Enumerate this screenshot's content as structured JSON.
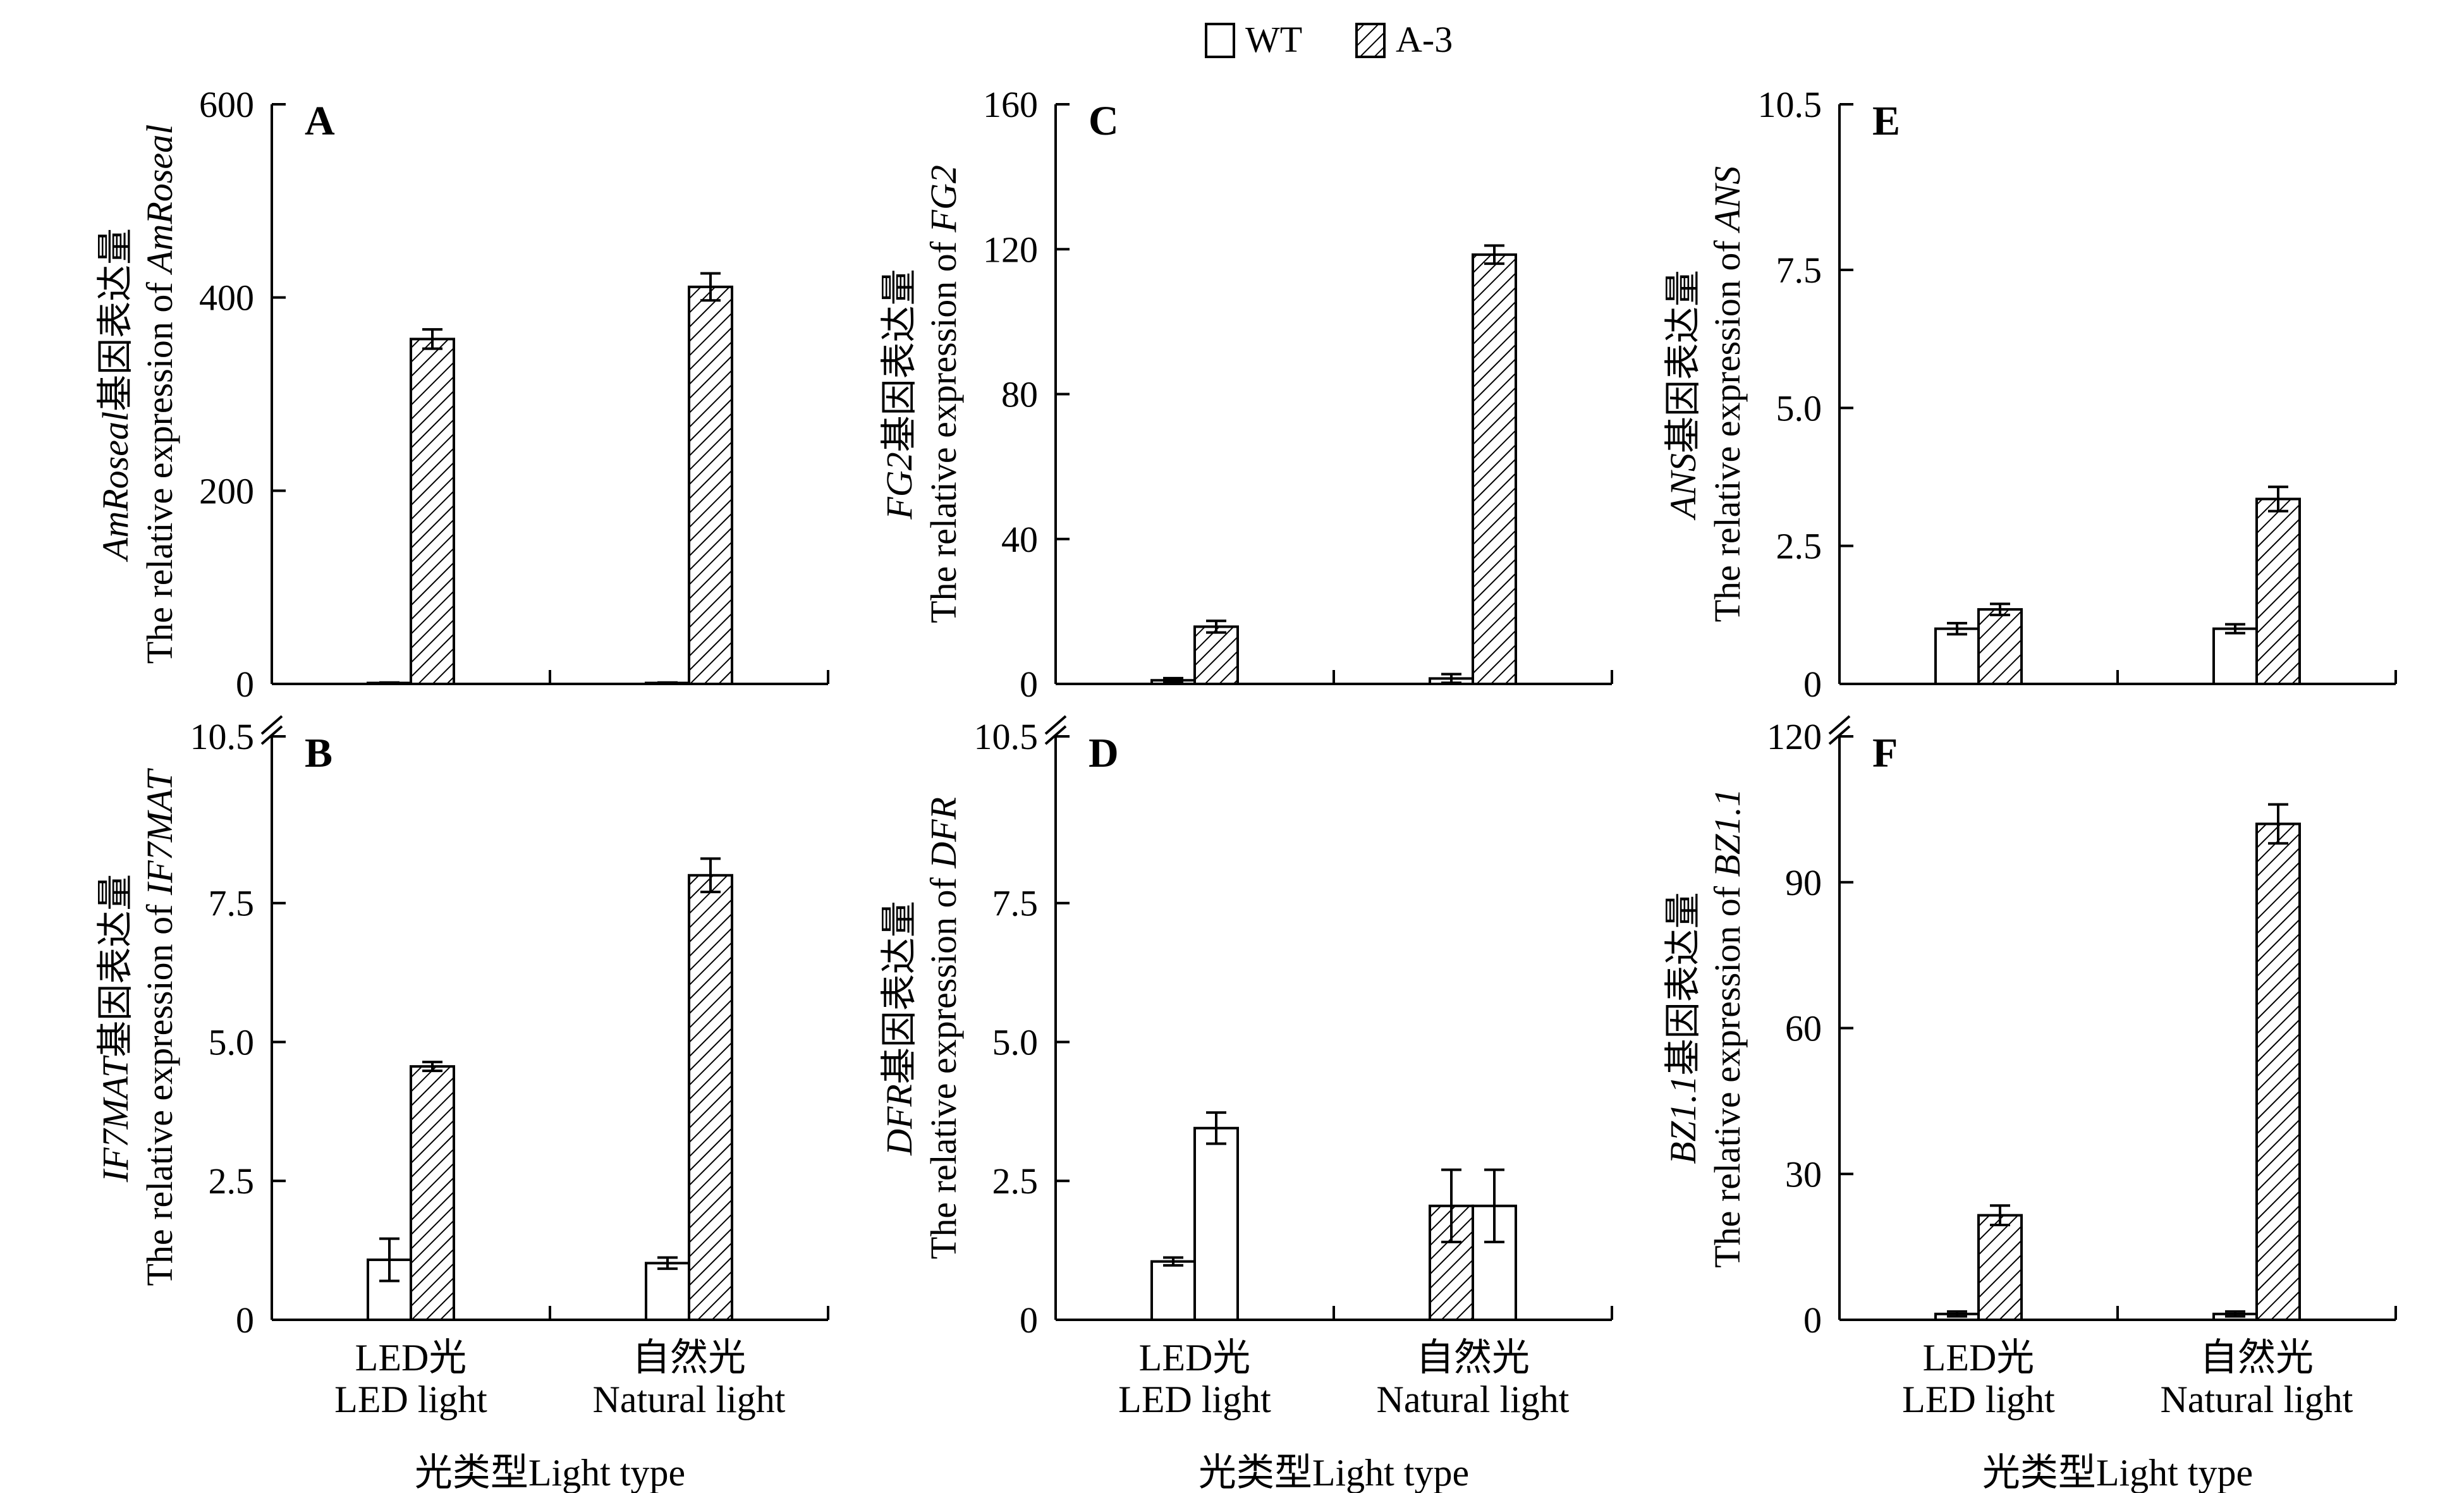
{
  "legend": {
    "items": [
      {
        "name": "WT",
        "pattern": "plain"
      },
      {
        "name": "A-3",
        "pattern": "hatched"
      }
    ]
  },
  "colors": {
    "axis": "#000000",
    "bar_fill": "#ffffff",
    "hatch": "#000000"
  },
  "chart_data": [
    {
      "type": "bar",
      "panel": "A",
      "ylabel_cn": "基因表达量",
      "ylabel_gene": "AmRoseal",
      "ylabel_en": "The relative expression of ",
      "ylabel_en_gene": "AmRoseal",
      "ylim": [
        0,
        600
      ],
      "yticks": [
        "0",
        "200",
        "400",
        "600"
      ],
      "ytick_values": [
        0,
        200,
        400,
        600
      ],
      "categories": [
        {
          "cn": "LED光",
          "en": "LED light"
        },
        {
          "cn": "自然光",
          "en": "Natural light"
        }
      ],
      "series": [
        {
          "name": "WT",
          "values": [
            1,
            1
          ],
          "errors": [
            0.5,
            0.5
          ]
        },
        {
          "name": "A-3",
          "values": [
            357,
            411
          ],
          "errors": [
            10,
            14
          ]
        }
      ],
      "show_xticklabels": false,
      "break_marks": false
    },
    {
      "type": "bar",
      "panel": "B",
      "ylabel_cn": "基因表达量",
      "ylabel_gene": "IF7MAT",
      "ylabel_en": "The relative expression of ",
      "ylabel_en_gene": "IF7MAT",
      "ylim": [
        0,
        10.5
      ],
      "yticks": [
        "0",
        "2.5",
        "5.0",
        "7.5",
        "10.5"
      ],
      "ytick_values": [
        0,
        2.5,
        5.0,
        7.5,
        10.5
      ],
      "categories": [
        {
          "cn": "LED光",
          "en": "LED light"
        },
        {
          "cn": "自然光",
          "en": "Natural light"
        }
      ],
      "series": [
        {
          "name": "WT",
          "values": [
            1.08,
            1.02
          ],
          "errors": [
            0.38,
            0.1
          ]
        },
        {
          "name": "A-3",
          "values": [
            4.56,
            8.0
          ],
          "errors": [
            0.08,
            0.3
          ]
        }
      ],
      "show_xticklabels": true,
      "break_marks": true,
      "xlabel": "光类型Light type"
    },
    {
      "type": "bar",
      "panel": "C",
      "ylabel_cn": "基因表达量",
      "ylabel_gene": "FG2",
      "ylabel_en": "The relative expression of ",
      "ylabel_en_gene": "FG2",
      "ylim": [
        0,
        160
      ],
      "yticks": [
        "0",
        "40",
        "80",
        "120",
        "160"
      ],
      "ytick_values": [
        0,
        40,
        80,
        120,
        160
      ],
      "categories": [
        {
          "cn": "LED光",
          "en": "LED light"
        },
        {
          "cn": "自然光",
          "en": "Natural light"
        }
      ],
      "series": [
        {
          "name": "WT",
          "values": [
            1,
            1.5
          ],
          "errors": [
            0.6,
            1.2
          ]
        },
        {
          "name": "A-3",
          "values": [
            15.8,
            118.5
          ],
          "errors": [
            1.6,
            2.5
          ]
        }
      ],
      "show_xticklabels": false,
      "break_marks": false
    },
    {
      "type": "bar",
      "panel": "D",
      "ylabel_cn": "基因表达量",
      "ylabel_gene": "DFR",
      "ylabel_en": "The relative expression of ",
      "ylabel_en_gene": "DFR",
      "ylim": [
        0,
        10.5
      ],
      "yticks": [
        "0",
        "2.5",
        "5.0",
        "7.5",
        "10.5"
      ],
      "ytick_values": [
        0,
        2.5,
        5.0,
        7.5,
        10.5
      ],
      "categories": [
        {
          "cn": "LED光",
          "en": "LED light"
        },
        {
          "cn": "自然光",
          "en": "Natural light"
        }
      ],
      "series": [
        {
          "name": "WT",
          "values": [
            1.05,
            2.05
          ],
          "errors": [
            0.07,
            0.65
          ]
        },
        {
          "name": "A-3",
          "values": [
            3.45,
            2.05
          ],
          "errors": [
            0.28,
            0.65
          ]
        }
      ],
      "hatched_override": [
        [
          false,
          false
        ],
        [
          true,
          false
        ]
      ],
      "show_xticklabels": true,
      "break_marks": true,
      "xlabel": "光类型Light type"
    },
    {
      "type": "bar",
      "panel": "E",
      "ylabel_cn": "基因表达量",
      "ylabel_gene": "ANS",
      "ylabel_en": "The relative expression of ",
      "ylabel_en_gene": "ANS",
      "ylim": [
        0,
        10.5
      ],
      "yticks": [
        "0",
        "2.5",
        "5.0",
        "7.5",
        "10.5"
      ],
      "ytick_values": [
        0,
        2.5,
        5.0,
        7.5,
        10.5
      ],
      "categories": [
        {
          "cn": "LED光",
          "en": "LED light"
        },
        {
          "cn": "自然光",
          "en": "Natural light"
        }
      ],
      "series": [
        {
          "name": "WT",
          "values": [
            1.0,
            1.0
          ],
          "errors": [
            0.1,
            0.08
          ]
        },
        {
          "name": "A-3",
          "values": [
            1.35,
            3.35
          ],
          "errors": [
            0.1,
            0.22
          ]
        }
      ],
      "show_xticklabels": false,
      "break_marks": false
    },
    {
      "type": "bar",
      "panel": "F",
      "ylabel_cn": "基因表达量",
      "ylabel_gene": "BZ1.1",
      "ylabel_en": "The relative expression of ",
      "ylabel_en_gene": "BZ1.1",
      "ylim": [
        0,
        120
      ],
      "yticks": [
        "0",
        "30",
        "60",
        "90",
        "120"
      ],
      "ytick_values": [
        0,
        30,
        60,
        90,
        120
      ],
      "categories": [
        {
          "cn": "LED光",
          "en": "LED light"
        },
        {
          "cn": "自然光",
          "en": "Natural light"
        }
      ],
      "series": [
        {
          "name": "WT",
          "values": [
            1.2,
            1.2
          ],
          "errors": [
            0.5,
            0.5
          ]
        },
        {
          "name": "A-3",
          "values": [
            21.5,
            102
          ],
          "errors": [
            2.0,
            4.0
          ]
        }
      ],
      "show_xticklabels": true,
      "break_marks": true,
      "xlabel": "光类型Light type"
    }
  ]
}
